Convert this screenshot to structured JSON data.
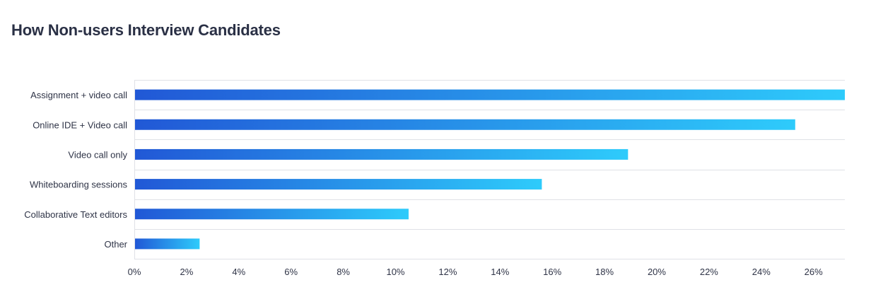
{
  "title": "How Non-users Interview Candidates",
  "colors": {
    "bar_start": "#2158d6",
    "bar_end": "#2ecbfb",
    "gridline": "#dfe1e6",
    "text": "#2f3447"
  },
  "chart_data": {
    "type": "bar",
    "orientation": "horizontal",
    "title": "How Non-users Interview Candidates",
    "xlabel": "",
    "ylabel": "",
    "categories": [
      "Assignment + video call",
      "Online IDE + Video call",
      "Video call only",
      "Whiteboarding sessions",
      "Collaborative Text editors",
      "Other"
    ],
    "values": [
      27.2,
      25.3,
      18.9,
      15.6,
      10.5,
      2.5
    ],
    "unit": "%",
    "xlim": [
      0,
      27.2
    ],
    "xticks": [
      0,
      2,
      4,
      6,
      8,
      10,
      12,
      14,
      16,
      18,
      20,
      22,
      24,
      26
    ],
    "xtick_labels": [
      "0%",
      "2%",
      "4%",
      "6%",
      "8%",
      "10%",
      "12%",
      "14%",
      "16%",
      "18%",
      "20%",
      "22%",
      "24%",
      "26%"
    ],
    "grid": "horizontal category separators",
    "legend": "none"
  }
}
